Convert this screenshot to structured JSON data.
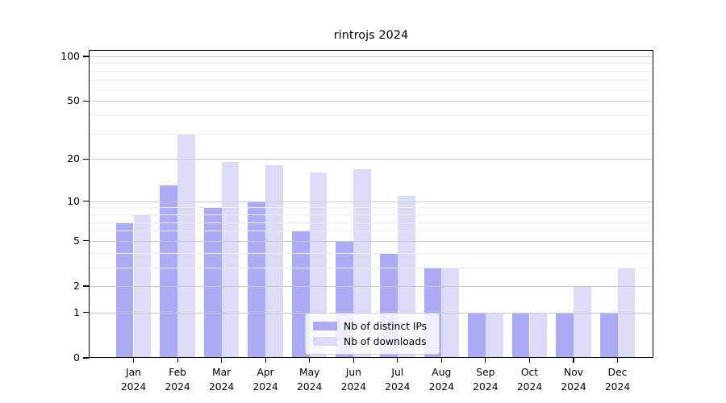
{
  "chart_data": {
    "type": "bar",
    "title": "rintrojs 2024",
    "scale": "log1p",
    "categories": [
      "Jan 2024",
      "Feb 2024",
      "Mar 2024",
      "Apr 2024",
      "May 2024",
      "Jun 2024",
      "Jul 2024",
      "Aug 2024",
      "Sep 2024",
      "Oct 2024",
      "Nov 2024",
      "Dec 2024"
    ],
    "series": [
      {
        "name": "Nb of distinct IPs",
        "color": "#aaaaf5",
        "values": [
          7,
          13,
          9,
          10,
          6,
          5,
          4,
          3,
          1,
          1,
          1,
          1
        ]
      },
      {
        "name": "Nb of downloads",
        "color": "#dcdcf9",
        "values": [
          8,
          30,
          19,
          18,
          16,
          17,
          11,
          3,
          1,
          1,
          2,
          3
        ]
      }
    ],
    "ylim": [
      0,
      100
    ],
    "y_major_ticks": [
      0,
      1,
      2,
      5,
      10,
      20,
      50,
      100
    ],
    "y_minor_gridlines": [
      3,
      4,
      6,
      7,
      8,
      9,
      30,
      40,
      60,
      70,
      80,
      90
    ],
    "grid": true,
    "legend_position": "lower center",
    "colors": {
      "axis": "#000000",
      "major_grid": "#c9c9c9",
      "minor_grid": "#ececec",
      "background": "#ffffff"
    }
  }
}
